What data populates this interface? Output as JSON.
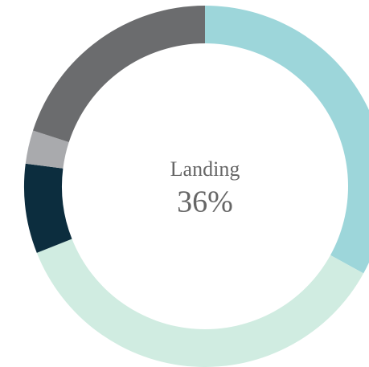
{
  "chart_data": {
    "type": "donut",
    "categories": [
      null,
      "Landing",
      null,
      null,
      null
    ],
    "values": [
      33,
      36,
      8,
      3,
      20
    ],
    "value_labels": [
      null,
      "36%",
      null,
      null,
      null
    ],
    "colors": [
      "#9dd6da",
      "#d0ece1",
      "#0c2d3e",
      "#a9aaad",
      "#6b6c6e"
    ],
    "highlight": 1
  }
}
